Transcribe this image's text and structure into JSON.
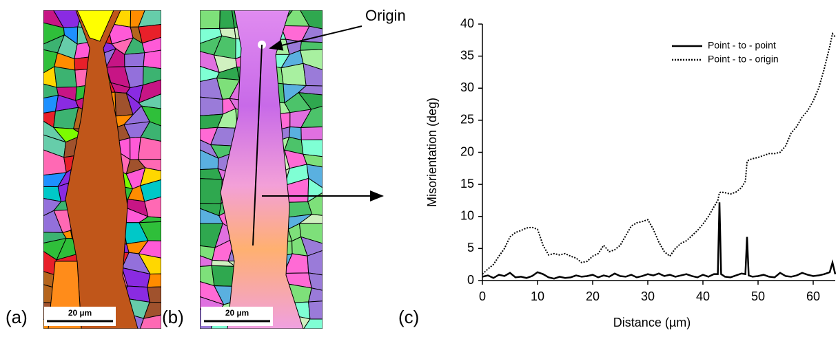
{
  "figure": {
    "panel_labels": [
      "(a)",
      "(b)",
      "(c)"
    ],
    "scale_bar_labels": [
      "20 µm",
      "20 µm"
    ],
    "origin_label": "Origin"
  },
  "chart_data": {
    "type": "line",
    "x_label": "Distance (µm)",
    "y_label": "Misorientation (deg)",
    "x": [
      0,
      1,
      2,
      3,
      4,
      5,
      6,
      7,
      8,
      9,
      10,
      11,
      12,
      13,
      14,
      15,
      16,
      17,
      18,
      19,
      20,
      21,
      22,
      23,
      24,
      25,
      26,
      27,
      28,
      29,
      30,
      31,
      32,
      33,
      34,
      35,
      36,
      37,
      38,
      39,
      40,
      41,
      42,
      42.7,
      43,
      43.3,
      44,
      45,
      46,
      47,
      47.7,
      48,
      48.3,
      49,
      50,
      51,
      52,
      53,
      54,
      55,
      56,
      57,
      58,
      59,
      60,
      61,
      62,
      63,
      63.5,
      64
    ],
    "series": [
      {
        "name": "Point - to - point",
        "color": "#000000",
        "style": "solid",
        "values": [
          0.6,
          0.8,
          0.4,
          0.9,
          0.7,
          1.2,
          0.5,
          0.6,
          0.4,
          0.7,
          1.3,
          1.0,
          0.5,
          0.3,
          0.6,
          0.4,
          0.5,
          0.8,
          0.6,
          0.7,
          0.9,
          0.5,
          0.8,
          0.6,
          1.1,
          0.7,
          0.6,
          0.9,
          0.5,
          0.7,
          1.0,
          0.8,
          1.1,
          0.7,
          0.9,
          0.6,
          0.8,
          1.0,
          0.7,
          0.5,
          0.9,
          0.6,
          1.0,
          1.0,
          12.2,
          1.0,
          0.6,
          0.5,
          0.8,
          1.1,
          1.0,
          6.8,
          0.8,
          0.6,
          0.7,
          0.9,
          0.6,
          0.5,
          1.2,
          0.7,
          0.6,
          0.8,
          1.2,
          0.9,
          0.7,
          0.8,
          1.0,
          1.3,
          2.8,
          1.0
        ]
      },
      {
        "name": "Point - to - origin",
        "color": "#000000",
        "style": "dotted",
        "values": [
          1.0,
          1.8,
          2.5,
          3.8,
          5.0,
          6.8,
          7.5,
          7.8,
          8.2,
          8.3,
          8.0,
          5.5,
          4.0,
          4.2,
          4.0,
          4.2,
          3.8,
          3.5,
          2.8,
          3.0,
          3.8,
          4.2,
          5.5,
          4.5,
          4.8,
          5.5,
          7.0,
          8.5,
          9.0,
          9.2,
          9.5,
          8.0,
          6.0,
          4.5,
          3.8,
          5.0,
          5.8,
          6.2,
          7.0,
          7.8,
          8.8,
          10.0,
          11.5,
          12.5,
          13.7,
          13.8,
          13.7,
          13.5,
          13.8,
          14.5,
          15.5,
          18.5,
          18.8,
          19.0,
          19.2,
          19.5,
          19.8,
          19.8,
          20.0,
          21.0,
          23.0,
          24.0,
          25.5,
          26.5,
          28.0,
          30.0,
          33.0,
          36.5,
          38.5,
          38.0
        ]
      }
    ],
    "xlim": [
      0,
      64
    ],
    "xticks": [
      0,
      10,
      20,
      30,
      40,
      50,
      60
    ],
    "ylim": [
      0,
      40
    ],
    "yticks": [
      0,
      5,
      10,
      15,
      20,
      25,
      30,
      35,
      40
    ],
    "grid": false,
    "legend": "upper right"
  }
}
